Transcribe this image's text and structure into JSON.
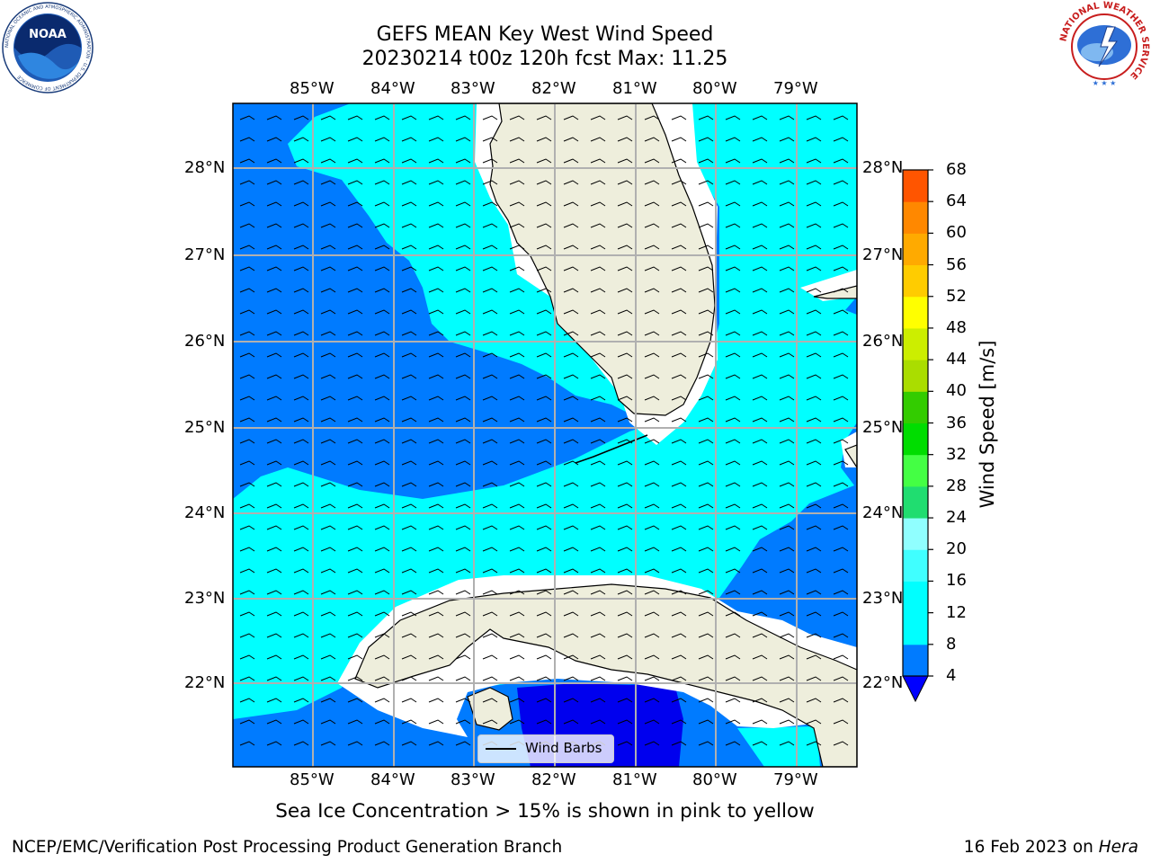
{
  "title": {
    "line1": "GEFS MEAN Key West Wind Speed",
    "line2": "20230214 t00z 120h fcst   Max: 11.25"
  },
  "map": {
    "lon_labels": [
      "85°W",
      "84°W",
      "83°W",
      "82°W",
      "81°W",
      "80°W",
      "79°W"
    ],
    "lat_labels": [
      "28°N",
      "27°N",
      "26°N",
      "25°N",
      "24°N",
      "23°N",
      "22°N"
    ],
    "extent": {
      "lon_min": -86.0,
      "lon_max": -78.25,
      "lat_min": 21.0,
      "lat_max": 28.75
    },
    "colors": {
      "land": "#eeeedc",
      "coast": "#000000",
      "grid": "#b0b0b0",
      "nodata": "#ffffff"
    },
    "regions": [
      {
        "name": "4-8 m/s",
        "color": "#007bff"
      },
      {
        "name": "8-12 m/s",
        "color": "#00ffff"
      },
      {
        "name": "0-4 m/s",
        "color": "#0000ee"
      }
    ],
    "legend_label": "Wind Barbs"
  },
  "colorbar": {
    "label": "Wind Speed [m/s]",
    "ticks": [
      "4",
      "8",
      "12",
      "16",
      "20",
      "24",
      "28",
      "32",
      "36",
      "40",
      "44",
      "48",
      "52",
      "56",
      "60",
      "64",
      "68"
    ],
    "colors": [
      "#007bff",
      "#00ffff",
      "#00ffff",
      "#40ffff",
      "#90ffff",
      "#20dd70",
      "#44ff44",
      "#00dd00",
      "#33cc00",
      "#aadd00",
      "#ccee00",
      "#ffff00",
      "#ffcc00",
      "#ffaa00",
      "#ff8800",
      "#ff5500",
      "#ff2200",
      "#ff0000"
    ],
    "under_color": "#0000ff"
  },
  "sea_ice_note": "Sea Ice Concentration > 15% is shown in pink to yellow",
  "footer": {
    "left": "NCEP/EMC/Verification Post Processing Product Generation Branch",
    "right_date": "16 Feb 2023 on ",
    "right_host": "Hera"
  },
  "logos": {
    "noaa_text": "NOAA",
    "noaa_ring": "NATIONAL OCEANIC AND ATMOSPHERIC ADMINISTRATION · U.S. DEPARTMENT OF COMMERCE",
    "nws_ring": "NATIONAL WEATHER SERVICE"
  }
}
